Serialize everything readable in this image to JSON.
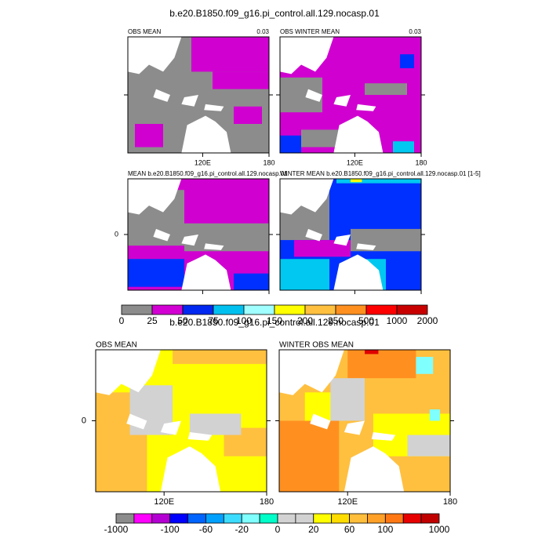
{
  "sections": [
    {
      "title": "b.e20.B1850.f09_g16.pi_control.all.129.nocasp.01",
      "panels": [
        {
          "title": "OBS MEAN",
          "right_label": "0.03",
          "x_ticks": [
            "120E",
            "180"
          ]
        },
        {
          "title": "OBS WINTER MEAN",
          "right_label": "0.03",
          "x_ticks": [
            "120E",
            "180"
          ]
        },
        {
          "title": "MEAN b.e20.B1850.f09_g16.pi_control.all.129.nocasp.01",
          "y_ticks": [
            "0"
          ]
        },
        {
          "title": "WINTER MEAN b.e20.B1850.f09_g16.pi_control.all.129.nocasp.01 [1-5]"
        }
      ],
      "colorbar": {
        "labels": [
          0,
          25,
          50,
          75,
          100,
          150,
          200,
          250,
          500,
          1000,
          2000
        ],
        "colors": [
          "#8c8c8c",
          "#d200d2",
          "#0028f0",
          "#00c0f0",
          "#a0ffff",
          "#ffff00",
          "#ffc040",
          "#ff9020",
          "#ff0000",
          "#c80000"
        ]
      }
    },
    {
      "title": "b.e20.B1850.f09_g16.pi_control.all.129.nocasp.01",
      "panels": [
        {
          "title": "OBS MEAN",
          "x_ticks": [
            "120E",
            "180"
          ],
          "y_ticks": [
            "0"
          ]
        },
        {
          "title": "WINTER OBS MEAN",
          "x_ticks": [
            "120E",
            "180"
          ]
        }
      ],
      "colorbar": {
        "labels": [
          -1000,
          -100,
          -60,
          -20,
          0,
          20,
          60,
          100,
          1000
        ],
        "colors": [
          "#8c8c8c",
          "#ff00ff",
          "#b400d2",
          "#0000ff",
          "#0064ff",
          "#00a0ff",
          "#3cdcff",
          "#80ffff",
          "#00ffc8",
          "#d2d2d2",
          "#d2d2d2",
          "#ffff00",
          "#ffdc00",
          "#ffbe3c",
          "#ffa028",
          "#ff7814",
          "#e60000",
          "#c00000"
        ]
      }
    }
  ]
}
